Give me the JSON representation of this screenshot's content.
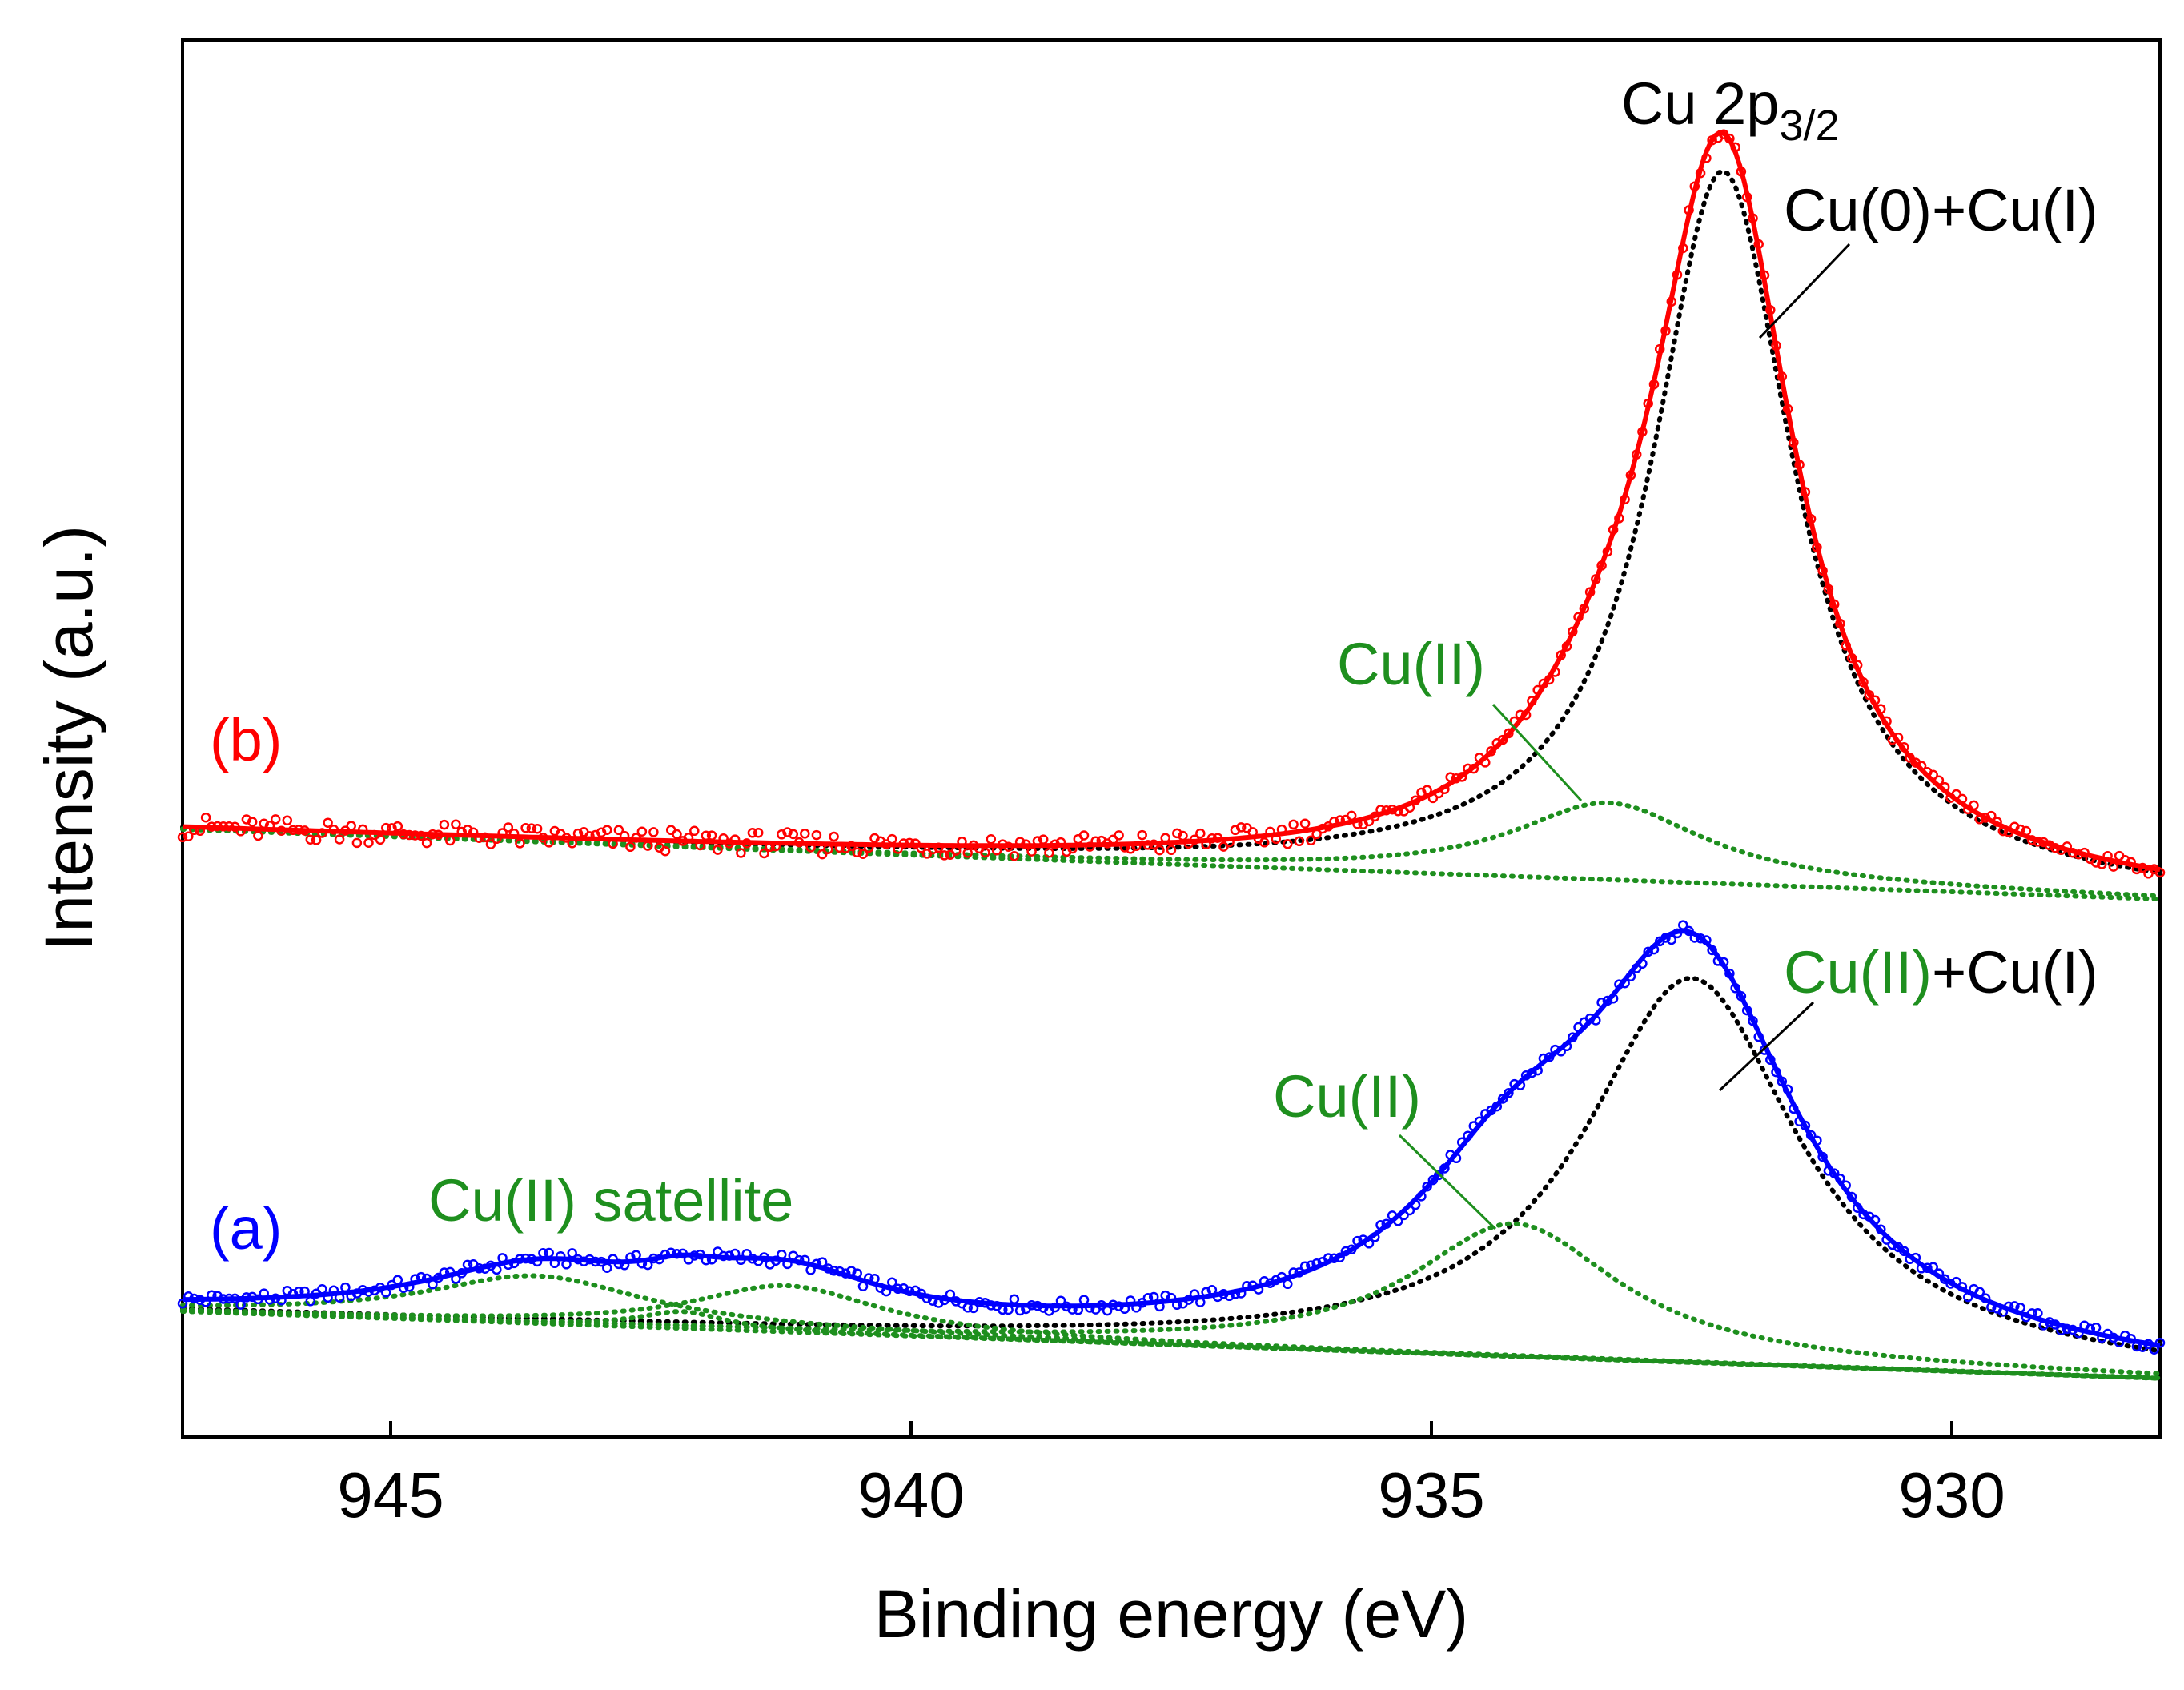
{
  "chart_data": {
    "type": "line",
    "title": "",
    "xlabel": "Binding energy (eV)",
    "ylabel": "Intensity (a.u.)",
    "xlim": [
      947,
      928
    ],
    "x_reversed": true,
    "xticks": [
      945,
      940,
      935,
      930
    ],
    "ylim": [
      0,
      100
    ],
    "yticks_shown": false,
    "grid": false,
    "legend": "none",
    "colors": {
      "a": "#0000ff",
      "b": "#ff0000",
      "component": "#1e8f1e",
      "main_component": "#000000"
    },
    "series": [
      {
        "name": "(a)",
        "color": "#0000ff",
        "label_text": "(a)",
        "baseline_points": [
          [
            947,
            9.0
          ],
          [
            928,
            4.2
          ]
        ],
        "peaks": [
          {
            "label": "Cu(II)+Cu(I)",
            "center": 932.5,
            "height": 27.5,
            "fwhm": 2.5,
            "color": "#000000"
          },
          {
            "label": "Cu(II)",
            "center": 934.2,
            "height": 9.5,
            "fwhm": 2.4,
            "color": "#1e8f1e"
          },
          {
            "label": "Cu(II) satellite",
            "center": 943.6,
            "height": 3.4,
            "fwhm": 2.6,
            "color": "#1e8f1e"
          },
          {
            "label": "Cu(II) satellite",
            "center": 942.2,
            "height": 1.2,
            "fwhm": 1.0,
            "color": "#1e8f1e"
          },
          {
            "label": "Cu(II) satellite",
            "center": 941.2,
            "height": 3.3,
            "fwhm": 2.2,
            "color": "#1e8f1e"
          }
        ]
      },
      {
        "name": "(b)",
        "color": "#ff0000",
        "label_text": "(b)",
        "baseline_points": [
          [
            947,
            43.5
          ],
          [
            928,
            38.5
          ]
        ],
        "peaks": [
          {
            "label": "Cu(0)+Cu(I)",
            "center": 932.2,
            "height": 51.0,
            "fwhm": 1.65,
            "color": "#000000"
          },
          {
            "label": "Cu(II)",
            "center": 933.3,
            "height": 5.5,
            "fwhm": 2.2,
            "color": "#1e8f1e"
          }
        ]
      }
    ],
    "annotations": [
      {
        "text": "Cu 2p",
        "subscript": "3/2"
      },
      {
        "text": "Cu(0)+Cu(I)"
      },
      {
        "text": "Cu(II)"
      },
      {
        "text": "Cu(II)"
      },
      {
        "text": "Cu(II)",
        "suffix": "+Cu(I)"
      },
      {
        "text": "Cu(II) satellite"
      }
    ]
  }
}
